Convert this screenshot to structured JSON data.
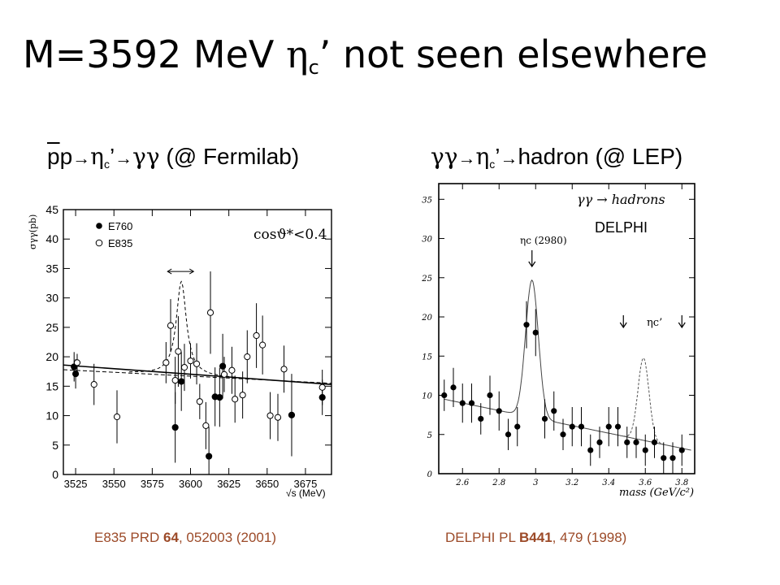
{
  "slide": {
    "title_prefix": "M=3592 MeV ",
    "title_eta": "η",
    "title_sub": "c",
    "title_suffix": "’ not seen elsewhere",
    "left_heading": {
      "pbar": "p",
      "p": "p",
      "arrow1": "→",
      "eta": "η",
      "sub": "c",
      "prime": "’",
      "arrow2": "→",
      "gg": "γγ",
      "rest": " (@ Fermilab)"
    },
    "right_heading": {
      "gg": "γγ",
      "arrow1": "→",
      "eta": "η",
      "sub": "c",
      "prime": "’",
      "arrow2": "→",
      "rest": "hadron (@ LEP)"
    },
    "left_cite": {
      "pre": "E835 PRD ",
      "bold": "64",
      "post": ", 052003 (2001)"
    },
    "right_cite": {
      "pre": "DELPHI PL ",
      "bold": "B441",
      "post": ", 479 (1998)"
    }
  },
  "chart_data": [
    {
      "type": "scatter",
      "title": "",
      "ylabel": "σγγ(pb)",
      "xlabel": "√s (MeV)",
      "xlim": [
        3517,
        3692
      ],
      "ylim": [
        0,
        45
      ],
      "xticks": [
        3525,
        3550,
        3575,
        3600,
        3625,
        3650,
        3675
      ],
      "yticks": [
        0,
        5,
        10,
        15,
        20,
        25,
        30,
        35,
        40,
        45
      ],
      "annotation": "cosϑ*<0.4",
      "legend": [
        "E760",
        "E835"
      ],
      "legend_position": "top-left",
      "series": [
        {
          "name": "E760",
          "marker": "filled",
          "points": [
            {
              "x": 3524,
              "y": 18.3,
              "err": 2.5
            },
            {
              "x": 3525,
              "y": 17.1,
              "err": 2.5
            },
            {
              "x": 3590,
              "y": 8.0,
              "err": 6.0
            },
            {
              "x": 3594,
              "y": 15.8,
              "err": 5.0
            },
            {
              "x": 3612,
              "y": 3.1,
              "err": 5.0
            },
            {
              "x": 3616,
              "y": 13.2,
              "err": 5.0
            },
            {
              "x": 3619,
              "y": 13.1,
              "err": 5.0
            },
            {
              "x": 3621,
              "y": 18.4,
              "err": 5.5
            },
            {
              "x": 3666,
              "y": 10.1,
              "err": 7.0
            },
            {
              "x": 3686,
              "y": 13.1,
              "err": 3.0
            }
          ]
        },
        {
          "name": "E835",
          "marker": "open",
          "points": [
            {
              "x": 3526,
              "y": 19.0,
              "err": 1.5
            },
            {
              "x": 3537,
              "y": 15.3,
              "err": 3.5
            },
            {
              "x": 3552,
              "y": 9.8,
              "err": 4.5
            },
            {
              "x": 3584,
              "y": 19.0,
              "err": 3.5
            },
            {
              "x": 3587,
              "y": 25.3,
              "err": 4.5
            },
            {
              "x": 3590,
              "y": 16.0,
              "err": 4.0
            },
            {
              "x": 3592,
              "y": 20.9,
              "err": 6.0
            },
            {
              "x": 3596,
              "y": 18.2,
              "err": 4.0
            },
            {
              "x": 3600,
              "y": 19.3,
              "err": 3.0
            },
            {
              "x": 3604,
              "y": 18.8,
              "err": 3.5
            },
            {
              "x": 3606,
              "y": 12.4,
              "err": 3.0
            },
            {
              "x": 3610,
              "y": 8.3,
              "err": 4.0
            },
            {
              "x": 3613,
              "y": 27.5,
              "err": 7.0
            },
            {
              "x": 3622,
              "y": 17.0,
              "err": 3.0
            },
            {
              "x": 3627,
              "y": 17.7,
              "err": 4.0
            },
            {
              "x": 3629,
              "y": 12.8,
              "err": 4.0
            },
            {
              "x": 3634,
              "y": 13.5,
              "err": 4.0
            },
            {
              "x": 3637,
              "y": 20.0,
              "err": 4.5
            },
            {
              "x": 3643,
              "y": 23.6,
              "err": 5.5
            },
            {
              "x": 3647,
              "y": 22.0,
              "err": 5.0
            },
            {
              "x": 3652,
              "y": 10.0,
              "err": 4.0
            },
            {
              "x": 3657,
              "y": 9.7,
              "err": 4.0
            },
            {
              "x": 3661,
              "y": 17.9,
              "err": 4.0
            },
            {
              "x": 3686,
              "y": 14.8,
              "err": 3.0
            }
          ]
        }
      ],
      "fit_line": {
        "x": [
          3517,
          3692
        ],
        "y": [
          18.6,
          15.3
        ]
      },
      "fit_alt_line": {
        "x": [
          3517,
          3692
        ],
        "y": [
          17.8,
          15.5
        ]
      },
      "peak_curve": {
        "center": 3594,
        "height": 16,
        "width": 4
      },
      "range_marker": {
        "x_from": 3585,
        "x_to": 3602,
        "y": 34.5
      }
    },
    {
      "type": "scatter",
      "title": "",
      "xlabel": "mass (GeV/c²)",
      "ylabel": "",
      "xlim": [
        2.47,
        3.87
      ],
      "ylim": [
        0,
        37
      ],
      "xticks": [
        2.6,
        2.8,
        3.0,
        3.2,
        3.4,
        3.6,
        3.8
      ],
      "yticks": [
        0,
        5,
        10,
        15,
        20,
        25,
        30,
        35
      ],
      "annotations": [
        "γγ → hadrons",
        "DELPHI",
        "ηc (2980)",
        "ηc’"
      ],
      "series": [
        {
          "name": "",
          "marker": "filled",
          "points": [
            {
              "x": 2.5,
              "y": 10.0,
              "err": 2.0
            },
            {
              "x": 2.55,
              "y": 11.0,
              "err": 2.5
            },
            {
              "x": 2.6,
              "y": 9.0,
              "err": 2.5
            },
            {
              "x": 2.65,
              "y": 9.0,
              "err": 2.5
            },
            {
              "x": 2.7,
              "y": 7.0,
              "err": 2.0
            },
            {
              "x": 2.75,
              "y": 10.0,
              "err": 2.5
            },
            {
              "x": 2.8,
              "y": 8.0,
              "err": 2.5
            },
            {
              "x": 2.85,
              "y": 5.0,
              "err": 2.0
            },
            {
              "x": 2.9,
              "y": 6.0,
              "err": 2.5
            },
            {
              "x": 2.95,
              "y": 19.0,
              "err": 3.0
            },
            {
              "x": 3.0,
              "y": 18.0,
              "err": 3.0
            },
            {
              "x": 3.05,
              "y": 7.0,
              "err": 2.5
            },
            {
              "x": 3.1,
              "y": 8.0,
              "err": 2.5
            },
            {
              "x": 3.15,
              "y": 5.0,
              "err": 2.0
            },
            {
              "x": 3.2,
              "y": 6.0,
              "err": 2.5
            },
            {
              "x": 3.25,
              "y": 6.0,
              "err": 2.5
            },
            {
              "x": 3.3,
              "y": 3.0,
              "err": 2.0
            },
            {
              "x": 3.35,
              "y": 4.0,
              "err": 2.0
            },
            {
              "x": 3.4,
              "y": 6.0,
              "err": 2.5
            },
            {
              "x": 3.45,
              "y": 6.0,
              "err": 2.5
            },
            {
              "x": 3.5,
              "y": 4.0,
              "err": 2.0
            },
            {
              "x": 3.55,
              "y": 4.0,
              "err": 2.0
            },
            {
              "x": 3.6,
              "y": 3.0,
              "err": 2.0
            },
            {
              "x": 3.65,
              "y": 4.0,
              "err": 2.0
            },
            {
              "x": 3.7,
              "y": 2.0,
              "err": 2.0
            },
            {
              "x": 3.75,
              "y": 2.0,
              "err": 2.0
            },
            {
              "x": 3.8,
              "y": 3.0,
              "err": 2.0
            }
          ]
        }
      ],
      "background": {
        "x": [
          2.5,
          3.85
        ],
        "y": [
          9.5,
          3.0
        ]
      },
      "peak_solid": {
        "center": 2.98,
        "height": 17.5,
        "width": 0.035
      },
      "peak_dashed": {
        "center": 3.59,
        "height": 10.5,
        "width": 0.03
      },
      "arrows": [
        2.98,
        3.48,
        3.8
      ]
    }
  ]
}
